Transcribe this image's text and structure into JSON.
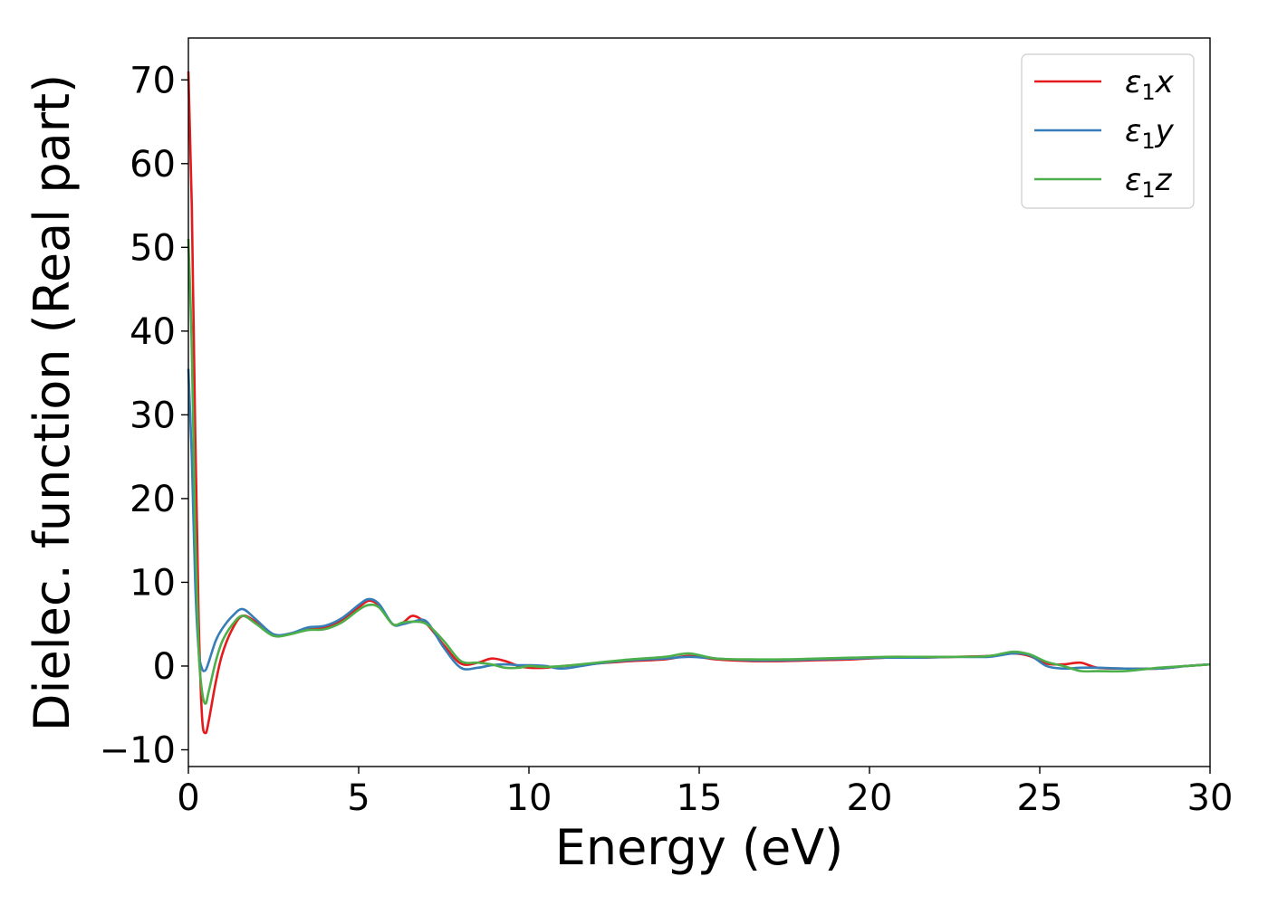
{
  "chart_data": {
    "type": "line",
    "xlabel": "Energy (eV)",
    "ylabel": "Dielec. function (Real part)",
    "xlim": [
      0,
      30
    ],
    "ylim": [
      -12,
      75
    ],
    "xticks": [
      0,
      5,
      10,
      15,
      20,
      25,
      30
    ],
    "yticks": [
      -10,
      0,
      10,
      20,
      30,
      40,
      50,
      60,
      70
    ],
    "grid": false,
    "legend_position": "top-right",
    "series": [
      {
        "name": "ε1x",
        "legend": {
          "base": "ε",
          "sub": "1",
          "suffix": "x"
        },
        "color": "#e41a1c",
        "x": [
          0,
          0.1,
          0.2,
          0.3,
          0.4,
          0.5,
          0.6,
          0.8,
          1.0,
          1.3,
          1.6,
          2.0,
          2.5,
          3.0,
          3.5,
          4.0,
          4.5,
          5.0,
          5.3,
          5.6,
          6.0,
          6.3,
          6.6,
          7.0,
          7.5,
          8.0,
          8.5,
          8.9,
          9.3,
          9.7,
          10.0,
          10.5,
          11.0,
          12.0,
          13.0,
          14.0,
          14.7,
          15.5,
          16.5,
          17.5,
          18.5,
          19.5,
          20.5,
          21.5,
          22.5,
          23.5,
          24.2,
          24.7,
          25.2,
          25.7,
          26.2,
          26.7,
          27.5,
          28.5,
          29.3,
          30.0
        ],
        "y": [
          71.0,
          55.0,
          28.0,
          6.0,
          -6.0,
          -8.0,
          -6.5,
          -2.0,
          1.5,
          4.5,
          6.0,
          5.2,
          3.7,
          3.9,
          4.5,
          4.6,
          5.5,
          7.0,
          7.8,
          7.2,
          5.0,
          5.2,
          6.0,
          5.0,
          2.5,
          0.3,
          0.4,
          0.9,
          0.6,
          0.0,
          -0.2,
          -0.2,
          0.0,
          0.3,
          0.6,
          0.8,
          1.2,
          0.8,
          0.6,
          0.6,
          0.7,
          0.8,
          1.0,
          1.0,
          1.1,
          1.2,
          1.5,
          1.2,
          0.3,
          0.2,
          0.4,
          -0.2,
          -0.3,
          -0.3,
          0.0,
          0.2
        ]
      },
      {
        "name": "ε1y",
        "legend": {
          "base": "ε",
          "sub": "1",
          "suffix": "y"
        },
        "color": "#377eb8",
        "x": [
          0,
          0.1,
          0.2,
          0.3,
          0.4,
          0.5,
          0.6,
          0.8,
          1.0,
          1.3,
          1.6,
          2.0,
          2.5,
          3.0,
          3.5,
          4.0,
          4.5,
          5.0,
          5.3,
          5.6,
          6.0,
          6.3,
          6.6,
          7.0,
          7.5,
          8.0,
          8.5,
          8.9,
          9.3,
          9.7,
          10.0,
          10.5,
          11.0,
          12.0,
          13.0,
          14.0,
          14.7,
          15.5,
          16.5,
          17.5,
          18.5,
          19.5,
          20.5,
          21.5,
          22.5,
          23.5,
          24.2,
          24.7,
          25.2,
          25.7,
          26.2,
          26.7,
          27.5,
          28.5,
          29.3,
          30.0
        ],
        "y": [
          35.5,
          25.0,
          10.0,
          2.0,
          -0.3,
          -0.5,
          0.5,
          3.0,
          4.5,
          6.0,
          6.8,
          5.5,
          3.8,
          3.9,
          4.6,
          4.8,
          5.7,
          7.3,
          8.0,
          7.4,
          5.0,
          5.0,
          5.3,
          5.3,
          2.2,
          -0.2,
          -0.2,
          0.1,
          0.2,
          0.1,
          0.1,
          0.0,
          -0.3,
          0.3,
          0.7,
          0.9,
          1.1,
          0.9,
          0.7,
          0.7,
          0.8,
          0.9,
          1.0,
          1.0,
          1.1,
          1.1,
          1.5,
          1.3,
          0.0,
          -0.3,
          -0.2,
          -0.2,
          -0.3,
          -0.3,
          0.0,
          0.2
        ]
      },
      {
        "name": "ε1z",
        "legend": {
          "base": "ε",
          "sub": "1",
          "suffix": "z"
        },
        "color": "#4daf4a",
        "x": [
          0,
          0.1,
          0.2,
          0.3,
          0.4,
          0.5,
          0.6,
          0.8,
          1.0,
          1.3,
          1.6,
          2.0,
          2.5,
          3.0,
          3.5,
          4.0,
          4.5,
          5.0,
          5.3,
          5.6,
          6.0,
          6.3,
          6.6,
          7.0,
          7.5,
          8.0,
          8.5,
          8.9,
          9.3,
          9.7,
          10.0,
          10.5,
          11.0,
          12.0,
          13.0,
          14.0,
          14.7,
          15.5,
          16.5,
          17.5,
          18.5,
          19.5,
          20.5,
          21.5,
          22.5,
          23.5,
          24.2,
          24.7,
          25.2,
          25.7,
          26.2,
          26.7,
          27.5,
          28.5,
          29.3,
          30.0
        ],
        "y": [
          51.0,
          38.0,
          16.0,
          2.0,
          -3.0,
          -4.5,
          -3.0,
          0.5,
          3.0,
          5.0,
          6.0,
          5.0,
          3.6,
          3.8,
          4.3,
          4.4,
          5.2,
          6.7,
          7.3,
          7.0,
          5.0,
          5.2,
          5.3,
          5.0,
          3.0,
          0.6,
          0.4,
          0.2,
          -0.2,
          -0.2,
          0.0,
          -0.1,
          0.0,
          0.4,
          0.8,
          1.1,
          1.5,
          0.9,
          0.8,
          0.8,
          0.9,
          1.0,
          1.1,
          1.1,
          1.1,
          1.2,
          1.7,
          1.4,
          0.5,
          0.0,
          -0.6,
          -0.6,
          -0.6,
          -0.2,
          0.0,
          0.2
        ]
      }
    ]
  }
}
